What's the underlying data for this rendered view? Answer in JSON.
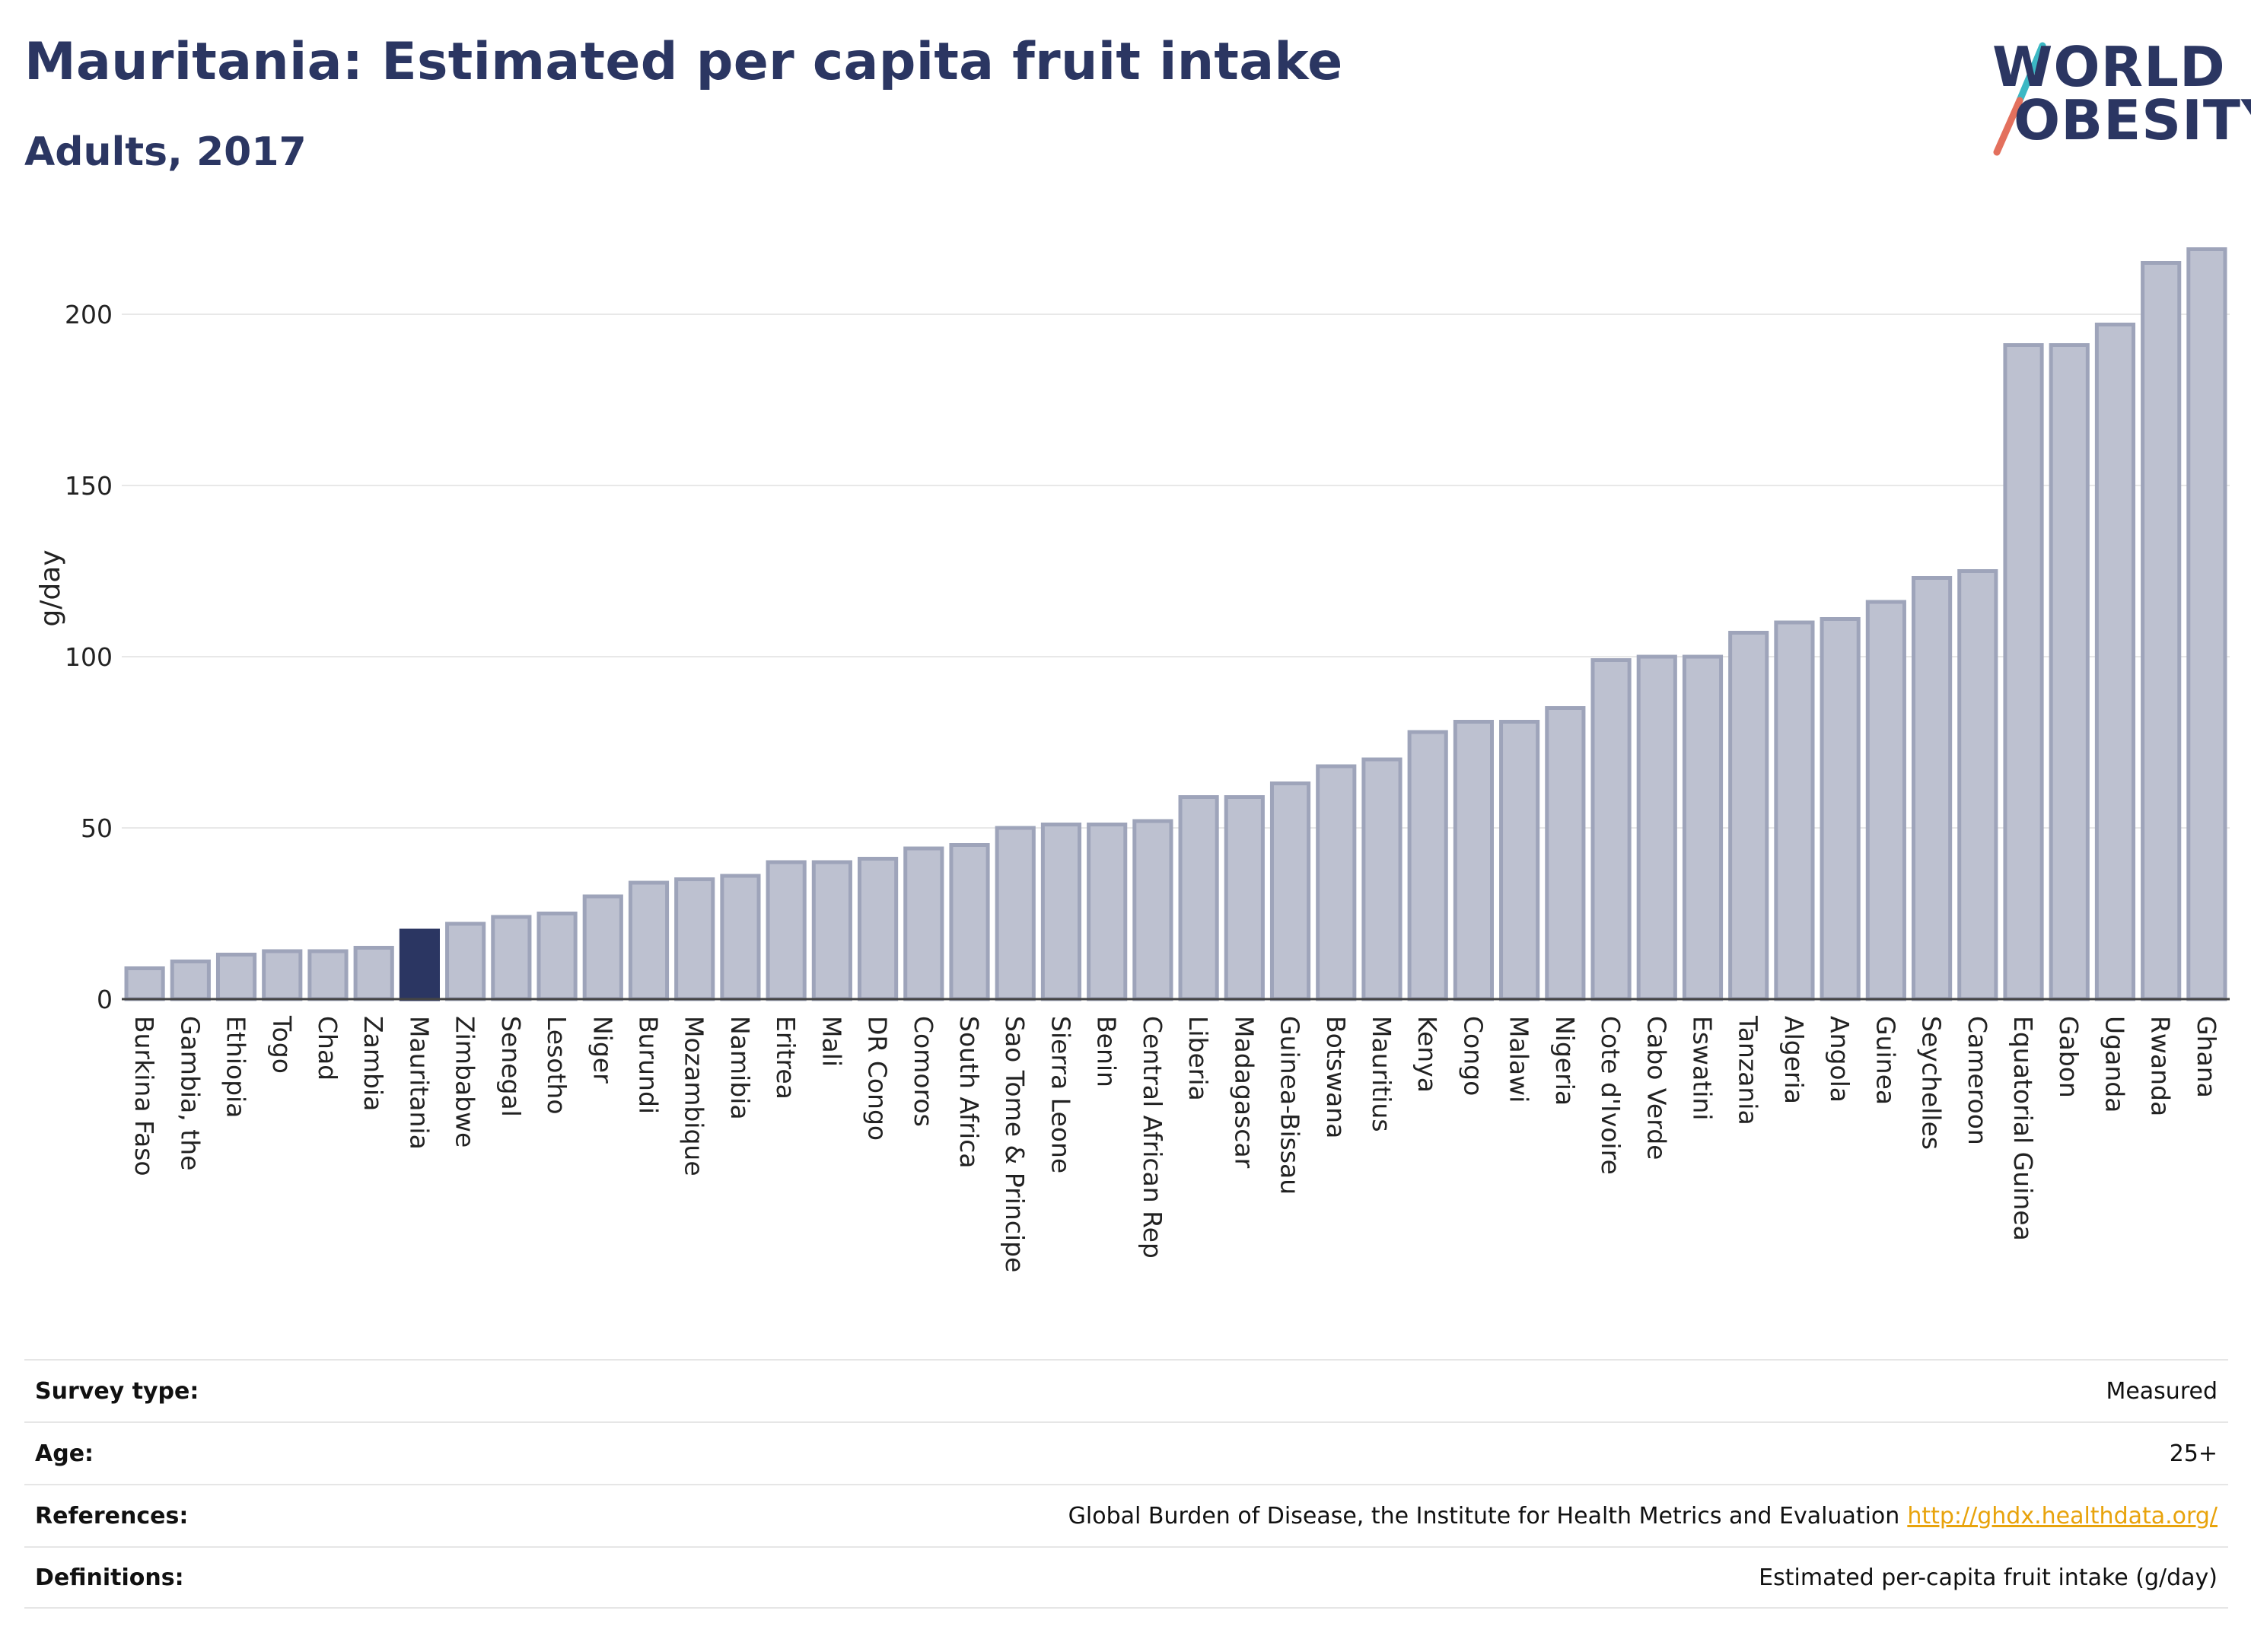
{
  "title": "Mauritania: Estimated per capita fruit intake",
  "subtitle": "Adults, 2017",
  "logo": {
    "line1": "WORLD",
    "line2": "OBESITY",
    "icon": "world-obesity-logo"
  },
  "colors": {
    "highlight": "#2b3662",
    "bar_fill": "#bdc1d0",
    "bar_stroke": "#9ea4ba",
    "title": "#2b3662",
    "link": "#e8a30c",
    "gridline": "#e8e8e8"
  },
  "chart_data": {
    "type": "bar",
    "title": "Mauritania: Estimated per capita fruit intake",
    "subtitle": "Adults, 2017",
    "ylabel": "g/day",
    "xlabel": "",
    "ylim": [
      0,
      220
    ],
    "yticks": [
      0,
      50,
      100,
      150,
      200
    ],
    "grid": true,
    "highlight": "Mauritania",
    "categories": [
      "Burkina Faso",
      "Gambia, the",
      "Ethiopia",
      "Togo",
      "Chad",
      "Zambia",
      "Mauritania",
      "Zimbabwe",
      "Senegal",
      "Lesotho",
      "Niger",
      "Burundi",
      "Mozambique",
      "Namibia",
      "Eritrea",
      "Mali",
      "DR Congo",
      "Comoros",
      "South Africa",
      "Sao Tome & Principe",
      "Sierra Leone",
      "Benin",
      "Central African Rep",
      "Liberia",
      "Madagascar",
      "Guinea-Bissau",
      "Botswana",
      "Mauritius",
      "Kenya",
      "Congo",
      "Malawi",
      "Nigeria",
      "Cote d'Ivoire",
      "Cabo Verde",
      "Eswatini",
      "Tanzania",
      "Algeria",
      "Angola",
      "Guinea",
      "Seychelles",
      "Cameroon",
      "Equatorial Guinea",
      "Gabon",
      "Uganda",
      "Rwanda",
      "Ghana"
    ],
    "values": [
      9,
      11,
      13,
      14,
      14,
      15,
      20,
      22,
      24,
      25,
      30,
      34,
      35,
      36,
      40,
      40,
      41,
      44,
      45,
      50,
      51,
      51,
      52,
      59,
      59,
      63,
      68,
      70,
      78,
      81,
      81,
      85,
      99,
      100,
      100,
      107,
      110,
      111,
      116,
      123,
      125,
      191,
      191,
      197,
      215,
      219
    ]
  },
  "info": [
    {
      "label": "Survey type:",
      "value": "Measured"
    },
    {
      "label": "Age:",
      "value": "25+"
    },
    {
      "label": "References:",
      "value": "Global Burden of Disease, the Institute for Health Metrics and Evaluation",
      "link": "http://ghdx.healthdata.org/"
    },
    {
      "label": "Definitions:",
      "value": "Estimated per-capita fruit intake (g/day)"
    }
  ]
}
